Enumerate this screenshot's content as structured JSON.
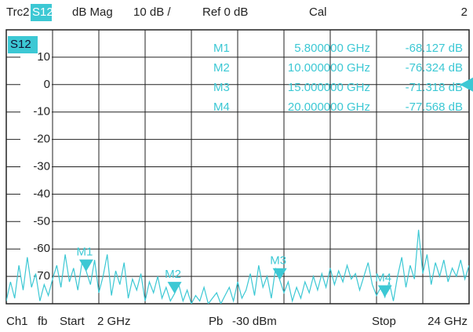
{
  "header": {
    "trace": "Trc2",
    "parameter": "S12",
    "format": "dB Mag",
    "scale": "10 dB /",
    "reference": "Ref 0 dB",
    "cal": "Cal",
    "window": "2"
  },
  "footer": {
    "channel": "Ch1",
    "mode": "fb",
    "start_label": "Start",
    "start": "2 GHz",
    "power_label": "Pb",
    "power": "-30 dBm",
    "stop_label": "Stop",
    "stop": "24 GHz"
  },
  "chart_data": {
    "type": "line",
    "trace_label": "S12",
    "color": "#3cc8d4",
    "xlim": [
      2,
      24
    ],
    "ylim": [
      -80,
      20
    ],
    "yticks": [
      10,
      0,
      -10,
      -20,
      -30,
      -40,
      -50,
      -60,
      -70
    ],
    "grid": true,
    "x": [
      2.0,
      2.2,
      2.4,
      2.6,
      2.8,
      3.0,
      3.2,
      3.4,
      3.6,
      3.8,
      4.0,
      4.2,
      4.4,
      4.6,
      4.8,
      5.0,
      5.2,
      5.4,
      5.6,
      5.8,
      6.0,
      6.2,
      6.4,
      6.6,
      6.8,
      7.0,
      7.2,
      7.4,
      7.6,
      7.8,
      8.0,
      8.2,
      8.4,
      8.6,
      8.8,
      9.0,
      9.2,
      9.4,
      9.6,
      9.8,
      10.0,
      10.2,
      10.4,
      10.6,
      10.8,
      11.0,
      11.2,
      11.4,
      11.6,
      11.8,
      12.0,
      12.2,
      12.4,
      12.6,
      12.8,
      13.0,
      13.2,
      13.4,
      13.6,
      13.8,
      14.0,
      14.2,
      14.4,
      14.6,
      14.8,
      15.0,
      15.2,
      15.4,
      15.6,
      15.8,
      16.0,
      16.2,
      16.4,
      16.6,
      16.8,
      17.0,
      17.2,
      17.4,
      17.6,
      17.8,
      18.0,
      18.2,
      18.4,
      18.6,
      18.8,
      19.0,
      19.2,
      19.4,
      19.6,
      19.8,
      20.0,
      20.2,
      20.4,
      20.6,
      20.8,
      21.0,
      21.2,
      21.4,
      21.6,
      21.8,
      22.0,
      22.2,
      22.4,
      22.6,
      22.8,
      23.0,
      23.2,
      23.4,
      23.6,
      23.8,
      24.0
    ],
    "values": [
      -79,
      -72,
      -78,
      -66,
      -75,
      -63,
      -74,
      -69,
      -79,
      -73,
      -77,
      -71,
      -66,
      -74,
      -62,
      -72,
      -67,
      -75,
      -65,
      -68.1,
      -73,
      -64,
      -76,
      -70,
      -62,
      -77,
      -68,
      -73,
      -65,
      -78,
      -71,
      -75,
      -69,
      -79,
      -72,
      -76,
      -70,
      -78,
      -74,
      -79,
      -76.3,
      -73,
      -79,
      -75,
      -80,
      -77,
      -79,
      -74,
      -80,
      -78,
      -76,
      -80,
      -77,
      -74,
      -79,
      -72,
      -78,
      -75,
      -69,
      -77,
      -66,
      -74,
      -70,
      -78,
      -67,
      -71.3,
      -76,
      -72,
      -79,
      -74,
      -78,
      -72,
      -76,
      -70,
      -75,
      -69,
      -74,
      -67,
      -73,
      -68,
      -72,
      -66,
      -71,
      -69,
      -75,
      -70,
      -65,
      -73,
      -77,
      -74,
      -77.6,
      -72,
      -79,
      -70,
      -63,
      -74,
      -66,
      -71,
      -53,
      -69,
      -62,
      -73,
      -65,
      -70,
      -64,
      -72,
      -67,
      -70,
      -64,
      -71,
      -66
    ],
    "markers": [
      {
        "name": "M1",
        "x": 5.8,
        "value": -68.127,
        "x_label": "5.800000 GHz",
        "value_label": "-68.127 dB"
      },
      {
        "name": "M2",
        "x": 10,
        "value": -76.324,
        "x_label": "10.000000 GHz",
        "value_label": "-76.324 dB"
      },
      {
        "name": "M3",
        "x": 15,
        "value": -71.318,
        "x_label": "15.000000 GHz",
        "value_label": "-71.318 dB"
      },
      {
        "name": "M4",
        "x": 20,
        "value": -77.568,
        "x_label": "20.000000 GHz",
        "value_label": "-77.568 dB"
      }
    ]
  }
}
